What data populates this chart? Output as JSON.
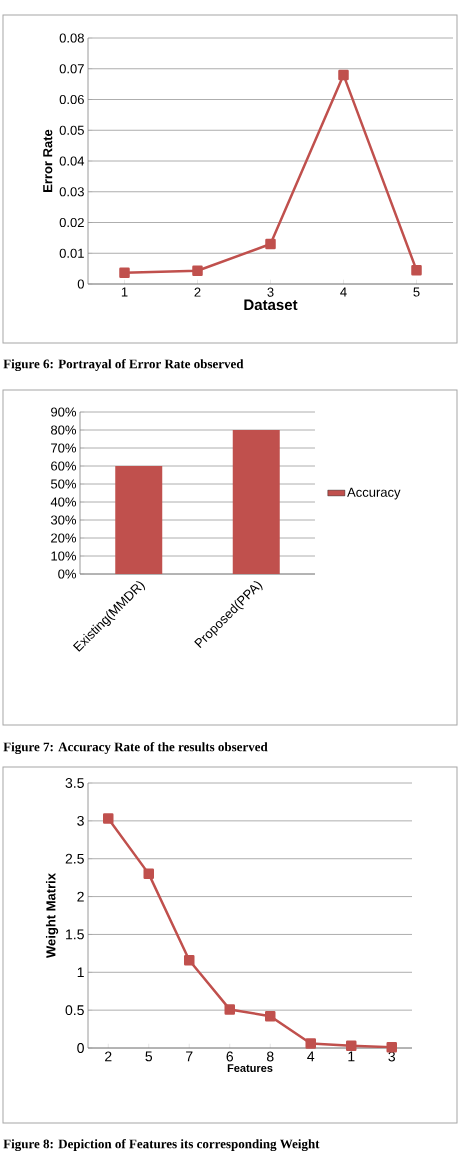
{
  "chart_data": [
    {
      "type": "line",
      "categories": [
        "1",
        "2",
        "3",
        "4",
        "5"
      ],
      "values": [
        0.0037,
        0.0043,
        0.013,
        0.068,
        0.0045
      ],
      "color": "#c0504d",
      "xlabel": "Dataset",
      "ylabel": "Error Rate",
      "ylim": [
        0,
        0.08
      ],
      "yticks": [
        0,
        0.01,
        0.02,
        0.03,
        0.04,
        0.05,
        0.06,
        0.07,
        0.08
      ],
      "grid": "y",
      "marker": "square",
      "line_style": "solid",
      "annotations": [
        "Figure 6: Portrayal of Error Rate observed"
      ]
    },
    {
      "type": "bar",
      "categories": [
        "Existing(MMDR)",
        "Proposed(PPA)"
      ],
      "series": [
        {
          "name": "Accuracy",
          "color": "#c0504d",
          "values": [
            60,
            80
          ]
        }
      ],
      "ylim": [
        0,
        90
      ],
      "yticks": [
        {
          "value": 0,
          "label": "0%"
        },
        {
          "value": 10,
          "label": "10%"
        },
        {
          "value": 20,
          "label": "20%"
        },
        {
          "value": 30,
          "label": "30%"
        },
        {
          "value": 40,
          "label": "40%"
        },
        {
          "value": 50,
          "label": "50%"
        },
        {
          "value": 60,
          "label": "60%"
        },
        {
          "value": 70,
          "label": "70%"
        },
        {
          "value": 80,
          "label": "80%"
        },
        {
          "value": 90,
          "label": "90%"
        }
      ],
      "grid": "y",
      "legend": "right",
      "annotations": [
        "Figure 7: Accuracy Rate of the results observed"
      ]
    },
    {
      "type": "line",
      "categories": [
        "2",
        "5",
        "7",
        "6",
        "8",
        "4",
        "1",
        "3"
      ],
      "values": [
        3.03,
        2.3,
        1.16,
        0.51,
        0.42,
        0.06,
        0.03,
        0.01
      ],
      "color": "#c0504d",
      "xlabel": "Features",
      "ylabel": "Weight Matrix",
      "ylim": [
        0,
        3.5
      ],
      "yticks": [
        0,
        0.5,
        1,
        1.5,
        2,
        2.5,
        3,
        3.5
      ],
      "grid": "y",
      "marker": "square",
      "line_style": "solid",
      "annotations": [
        "Figure 8: Depiction of Features its corresponding Weight"
      ]
    }
  ]
}
